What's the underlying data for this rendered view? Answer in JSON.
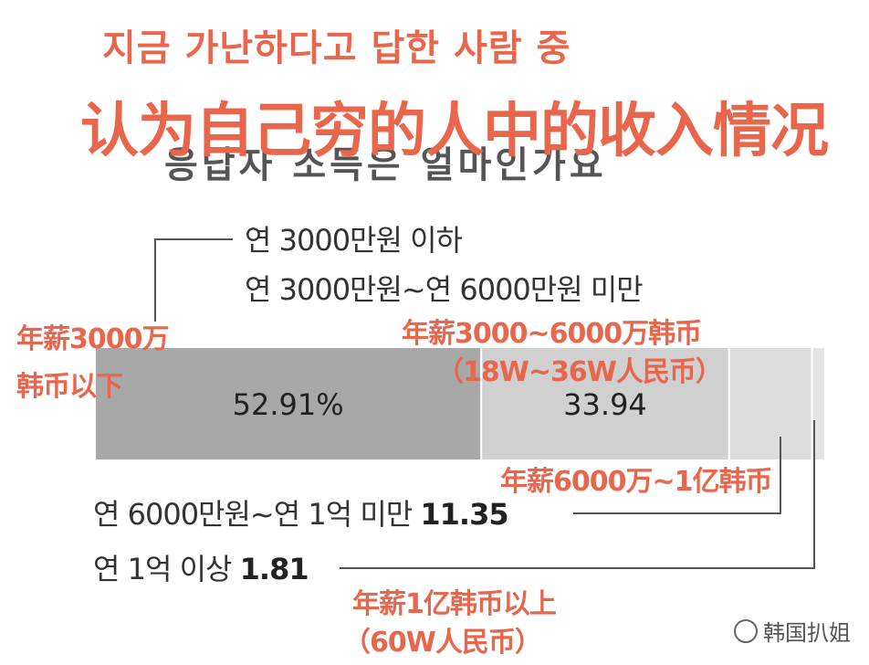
{
  "title_ko": "지금 가난하다고 답한 사람 중",
  "title_zh": "认为自己穷的人中的收入情况",
  "subtitle_ko_partial": "응답자 소득은 얼마인가요",
  "legend": {
    "cat1": "연 3000만원 이하",
    "cat2": "연 3000만원~연 6000만원 미만",
    "cat3_label": "연 6000만원~연 1억 미만",
    "cat3_value": "11.35",
    "cat4_label": "연 1억 이상",
    "cat4_value": "1.81"
  },
  "annotations": {
    "a1_line1": "年薪3000万",
    "a1_line2": "韩币以下",
    "a2_line1": "年薪3000~6000万韩币",
    "a2_line2": "（18W~36W人民币）",
    "a3": "年薪6000万~1亿韩币",
    "a4_line1": "年薪1亿韩币以上",
    "a4_line2": "（60W人民币）"
  },
  "watermark": "韩国扒姐",
  "colors": {
    "accent": "#e8664c",
    "seg1": "#a8a8a8",
    "seg2": "#d0d0d0",
    "seg3": "#dcdcdc",
    "seg4": "#e4e4e4"
  },
  "chart_data": {
    "type": "bar",
    "stacked": true,
    "orientation": "horizontal",
    "categories": [
      "연 3000만원 이하",
      "연 3000만원~연 6000만원 미만",
      "연 6000만원~연 1억 미만",
      "연 1억 이상"
    ],
    "values": [
      52.91,
      33.94,
      11.35,
      1.81
    ],
    "data_labels": [
      "52.91%",
      "33.94",
      "11.35",
      "1.81"
    ],
    "unit": "%"
  }
}
